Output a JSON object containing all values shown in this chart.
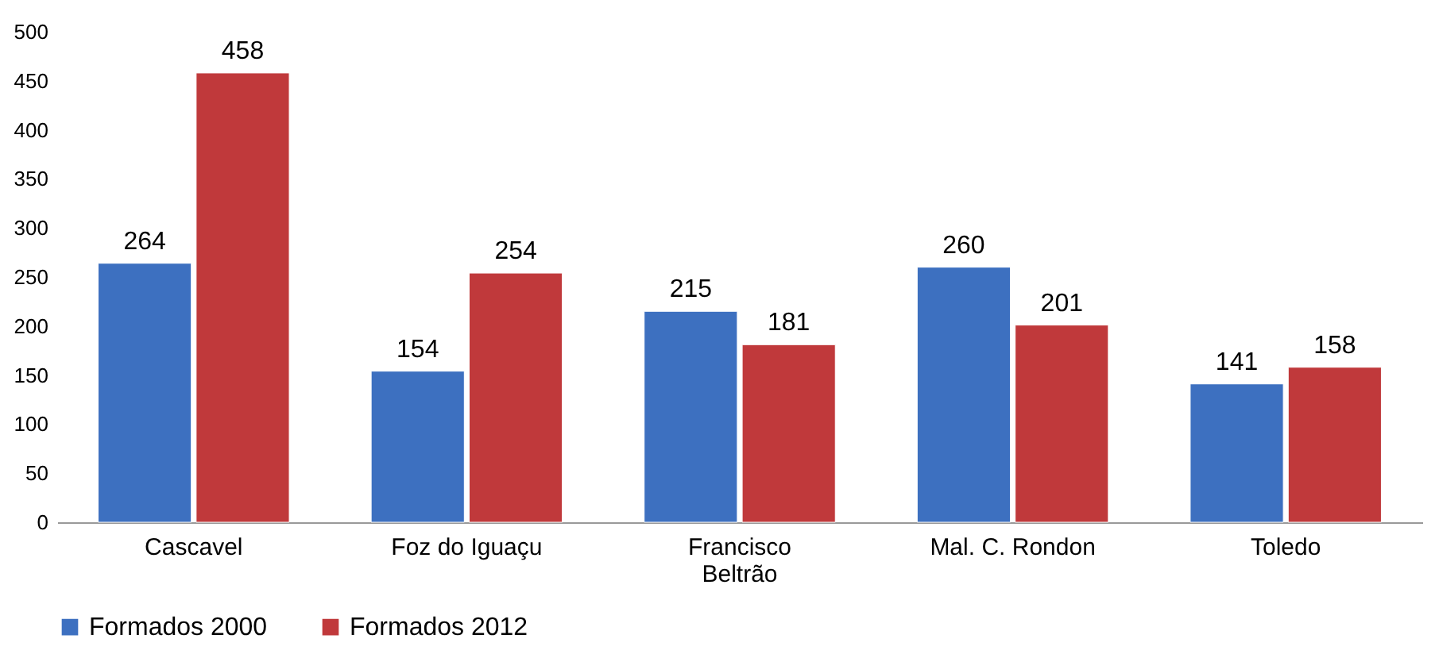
{
  "chart_data": {
    "type": "bar",
    "categories": [
      "Cascavel",
      "Foz do Iguaçu",
      "Francisco Beltrão",
      "Mal. C. Rondon",
      "Toledo"
    ],
    "series": [
      {
        "name": "Formados 2000",
        "color": "#3d70c0",
        "values": [
          264,
          154,
          215,
          260,
          141
        ]
      },
      {
        "name": "Formados 2012",
        "color": "#c0393b",
        "values": [
          458,
          254,
          181,
          201,
          158
        ]
      }
    ],
    "ylim": [
      0,
      500
    ],
    "yticks": [
      0,
      50,
      100,
      150,
      200,
      250,
      300,
      350,
      400,
      450,
      500
    ],
    "grid": false,
    "legend": "bottom",
    "data_labels": true
  }
}
